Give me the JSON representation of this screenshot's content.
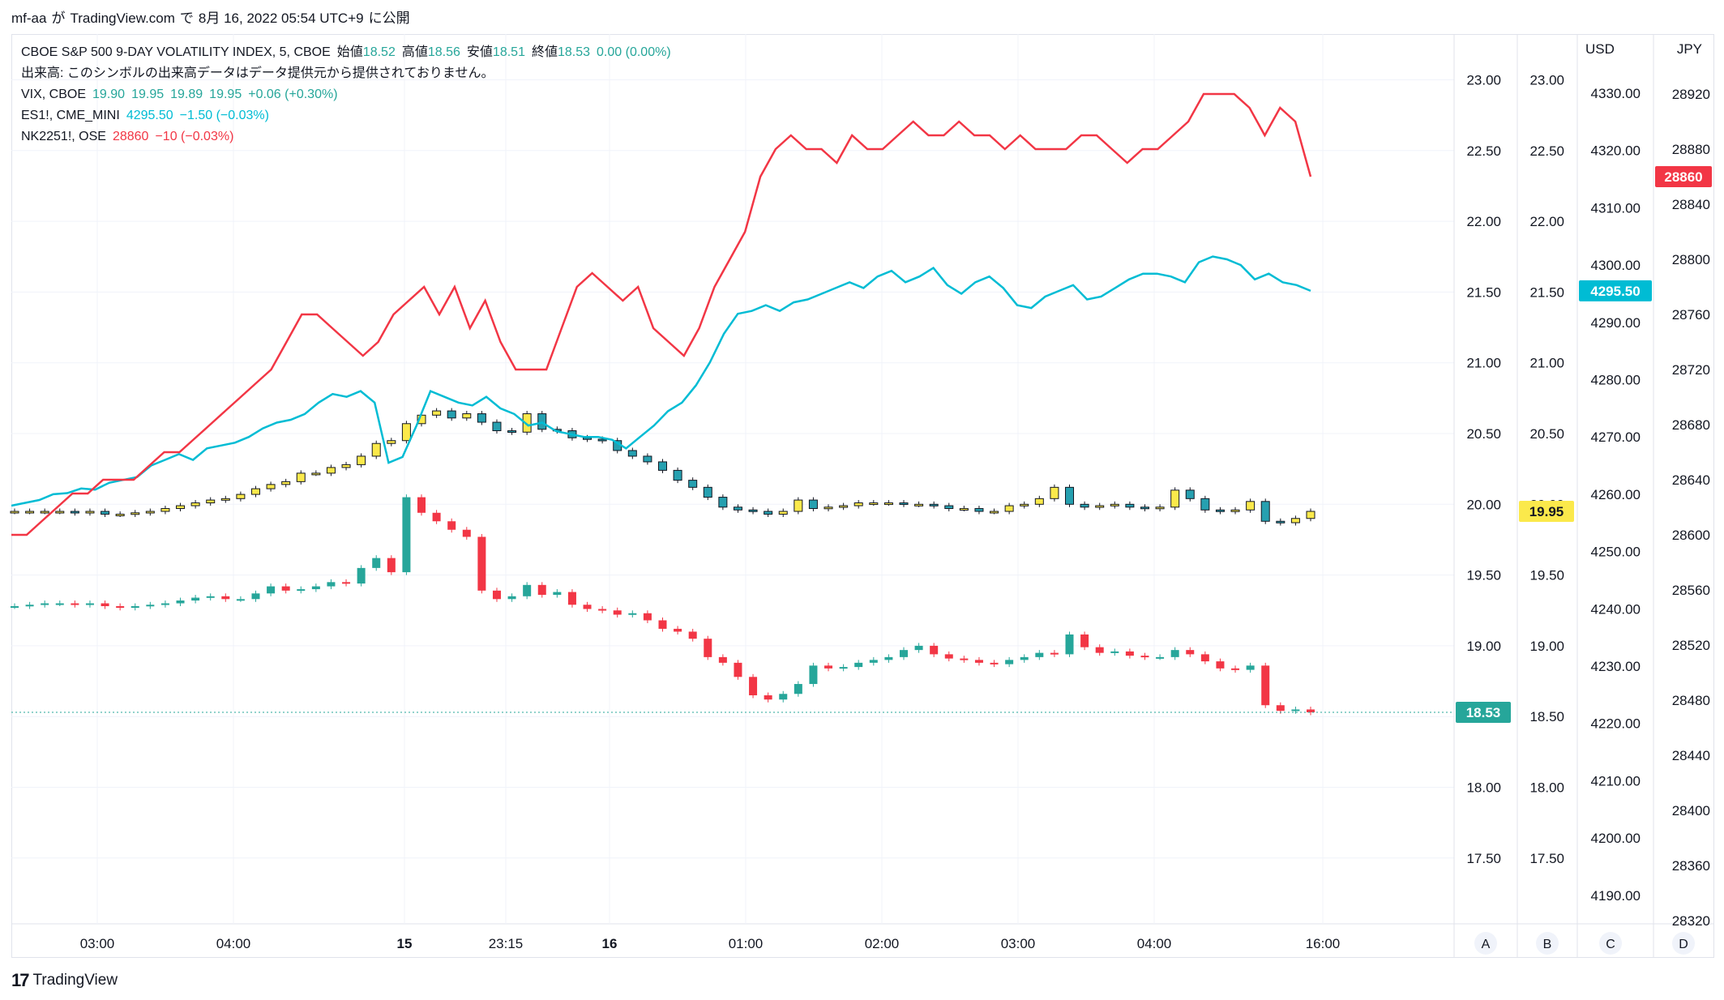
{
  "header": {
    "user": "mf-aa",
    "ga": "が",
    "site": "TradingView.com",
    "de": "で",
    "date": "8月 16, 2022 05:54 UTC+9",
    "ni_published": "に公開"
  },
  "legend": {
    "main": {
      "symbol": "CBOE S&P 500 9-DAY VOLATILITY INDEX, 5, CBOE",
      "open_label": "始値",
      "open": "18.52",
      "high_label": "高値",
      "high": "18.56",
      "low_label": "安値",
      "low": "18.51",
      "close_label": "終値",
      "close": "18.53",
      "change": "0.00 (0.00%)"
    },
    "volume_note": "出来高: このシンボルの出来高データはデータ提供元から提供されておりません。",
    "vix": {
      "symbol": "VIX, CBOE",
      "o": "19.90",
      "h": "19.95",
      "l": "19.89",
      "c": "19.95",
      "change": "+0.06 (+0.30%)"
    },
    "es": {
      "symbol": "ES1!, CME_MINI",
      "last": "4295.50",
      "change": "−1.50 (−0.03%)"
    },
    "nk": {
      "symbol": "NK2251!, OSE",
      "last": "28860",
      "change": "−10 (−0.03%)"
    }
  },
  "colors": {
    "up": "#26a69a",
    "down": "#f23645",
    "vix": "#fbe94b",
    "es": "#00bcd4",
    "nk": "#f23645",
    "grid": "#f0f3fa"
  },
  "chart_data": {
    "type": "candlestick_overlay",
    "x_ticks": [
      "03:00",
      "04:00",
      "15",
      "23:15",
      "16",
      "01:00",
      "02:00",
      "03:00",
      "04:00",
      "16:00"
    ],
    "scales": {
      "A": {
        "ticks": [
          "23.00",
          "22.50",
          "22.00",
          "21.50",
          "21.00",
          "20.50",
          "20.00",
          "19.50",
          "19.00",
          "18.50",
          "18.00",
          "17.50"
        ],
        "last_label": "18.53"
      },
      "B": {
        "ticks": [
          "23.00",
          "22.50",
          "22.00",
          "21.50",
          "21.00",
          "20.50",
          "20.00",
          "19.50",
          "19.00",
          "18.50",
          "18.00",
          "17.50"
        ],
        "last_label": "19.95"
      },
      "C": {
        "unit": "USD",
        "ticks": [
          "4330.00",
          "4320.00",
          "4310.00",
          "4300.00",
          "4290.00",
          "4280.00",
          "4270.00",
          "4260.00",
          "4250.00",
          "4240.00",
          "4230.00",
          "4220.00",
          "4210.00",
          "4200.00",
          "4190.00"
        ],
        "last_label": "4295.50"
      },
      "D": {
        "unit": "JPY",
        "ticks": [
          "28920",
          "28880",
          "28840",
          "28800",
          "28760",
          "28720",
          "28680",
          "28640",
          "28600",
          "28560",
          "28520",
          "28480",
          "28440",
          "28400",
          "28360",
          "28320"
        ],
        "last_label": "28860"
      }
    },
    "axis_letters": [
      "A",
      "B",
      "C",
      "D"
    ],
    "vix9d_close": [
      19.28,
      19.29,
      19.3,
      19.3,
      19.29,
      19.3,
      19.28,
      19.27,
      19.28,
      19.29,
      19.3,
      19.32,
      19.34,
      19.35,
      19.33,
      19.33,
      19.37,
      19.42,
      19.39,
      19.4,
      19.42,
      19.45,
      19.44,
      19.55,
      19.62,
      19.52,
      20.05,
      19.94,
      19.88,
      19.82,
      19.77,
      19.39,
      19.33,
      19.35,
      19.43,
      19.36,
      19.38,
      19.29,
      19.26,
      19.25,
      19.22,
      19.23,
      19.18,
      19.12,
      19.1,
      19.05,
      18.92,
      18.88,
      18.78,
      18.65,
      18.62,
      18.66,
      18.73,
      18.86,
      18.84,
      18.85,
      18.88,
      18.9,
      18.92,
      18.97,
      19.0,
      18.94,
      18.91,
      18.9,
      18.88,
      18.87,
      18.9,
      18.92,
      18.95,
      18.94,
      19.08,
      18.99,
      18.95,
      18.96,
      18.93,
      18.92,
      18.92,
      18.97,
      18.94,
      18.89,
      18.84,
      18.83,
      18.86,
      18.58,
      18.54,
      18.55,
      18.53
    ],
    "vix_close": [
      19.95,
      19.95,
      19.95,
      19.95,
      19.94,
      19.95,
      19.93,
      19.93,
      19.94,
      19.95,
      19.97,
      19.99,
      20.01,
      20.03,
      20.04,
      20.07,
      20.11,
      20.14,
      20.16,
      20.22,
      20.22,
      20.26,
      20.28,
      20.34,
      20.43,
      20.45,
      20.57,
      20.63,
      20.66,
      20.61,
      20.64,
      20.58,
      20.52,
      20.51,
      20.64,
      20.53,
      20.52,
      20.47,
      20.46,
      20.45,
      20.38,
      20.34,
      20.3,
      20.24,
      20.17,
      20.12,
      20.05,
      19.98,
      19.96,
      19.95,
      19.93,
      19.95,
      20.03,
      19.97,
      19.98,
      19.99,
      20.01,
      20.01,
      20.01,
      20.0,
      20.0,
      19.99,
      19.97,
      19.97,
      19.95,
      19.95,
      19.99,
      20.0,
      20.04,
      20.12,
      20.0,
      19.98,
      19.99,
      20.0,
      19.98,
      19.97,
      19.98,
      20.1,
      20.04,
      19.96,
      19.95,
      19.96,
      20.02,
      19.88,
      19.87,
      19.9,
      19.95
    ],
    "es_close": [
      4258.0,
      4258.5,
      4259.0,
      4260.0,
      4260.2,
      4261.0,
      4260.8,
      4262.0,
      4262.5,
      4263.0,
      4265.0,
      4266.0,
      4267.0,
      4266.0,
      4268.0,
      4268.5,
      4269.0,
      4270.0,
      4271.5,
      4272.5,
      4273.0,
      4274.0,
      4276.0,
      4277.5,
      4277.0,
      4278.0,
      4276.0,
      4265.5,
      4266.5,
      4272.0,
      4278.0,
      4277.0,
      4276.0,
      4275.5,
      4277.0,
      4275.0,
      4274.0,
      4272.0,
      4272.5,
      4271.0,
      4270.5,
      4270.0,
      4270.0,
      4269.5,
      4268.0,
      4270.0,
      4272.0,
      4274.5,
      4276.0,
      4279.0,
      4283.0,
      4288.0,
      4291.5,
      4292.0,
      4293.0,
      4292.0,
      4293.5,
      4294.0,
      4295.0,
      4296.0,
      4297.0,
      4296.0,
      4298.0,
      4299.0,
      4297.0,
      4298.0,
      4299.5,
      4296.5,
      4295.0,
      4297.0,
      4298.0,
      4296.0,
      4293.0,
      4292.5,
      4294.5,
      4295.5,
      4296.5,
      4294.0,
      4294.5,
      4296.0,
      4297.5,
      4298.5,
      4298.5,
      4298.0,
      4297.0,
      4300.5,
      4301.5,
      4301.0,
      4300.0,
      4297.5,
      4298.5,
      4297.0,
      4296.5,
      4295.5
    ],
    "nk_close": [
      28600,
      28600,
      28610,
      28620,
      28630,
      28630,
      28640,
      28640,
      28640,
      28650,
      28660,
      28660,
      28670,
      28680,
      28690,
      28700,
      28710,
      28720,
      28740,
      28760,
      28760,
      28750,
      28740,
      28730,
      28740,
      28760,
      28770,
      28780,
      28760,
      28780,
      28750,
      28770,
      28740,
      28720,
      28720,
      28720,
      28750,
      28780,
      28790,
      28780,
      28770,
      28780,
      28750,
      28740,
      28730,
      28750,
      28780,
      28800,
      28820,
      28860,
      28880,
      28890,
      28880,
      28880,
      28870,
      28890,
      28880,
      28880,
      28890,
      28900,
      28890,
      28890,
      28900,
      28890,
      28890,
      28880,
      28890,
      28880,
      28880,
      28880,
      28890,
      28890,
      28880,
      28870,
      28880,
      28880,
      28890,
      28900,
      28920,
      28920,
      28920,
      28910,
      28890,
      28910,
      28900,
      28860
    ]
  }
}
